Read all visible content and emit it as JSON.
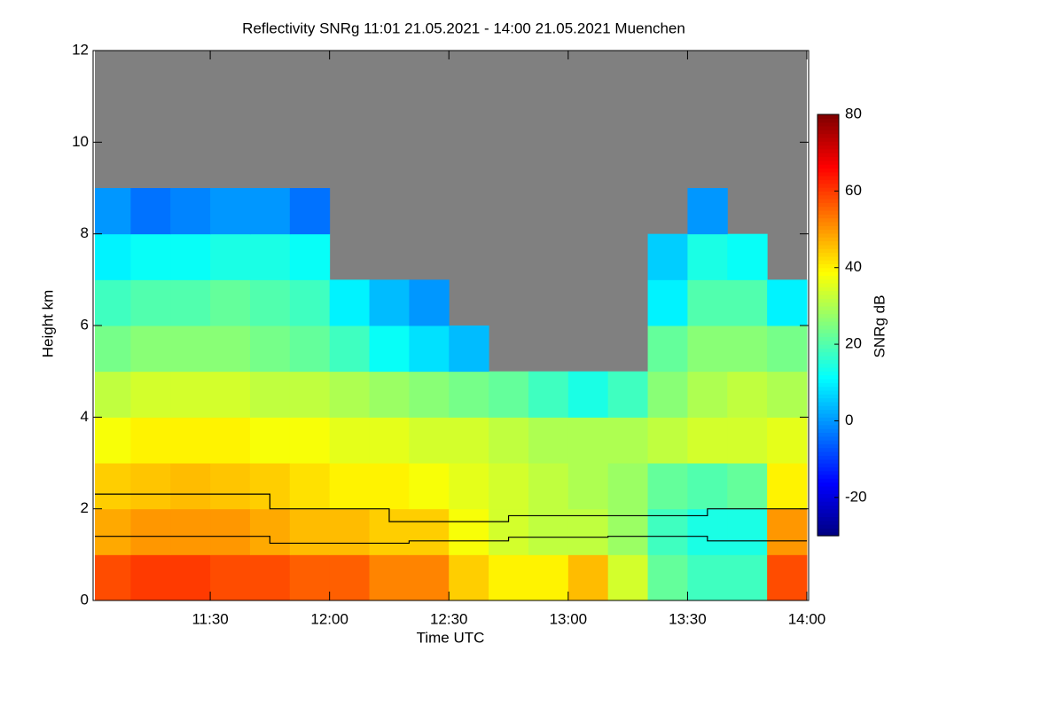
{
  "chart_data": {
    "type": "heatmap",
    "title": "Reflectivity SNRg   11:01 21.05.2021 - 14:00 21.05.2021 Muenchen",
    "x_label": "Time UTC",
    "y_label": "Height km",
    "colorbar_label": "SNRg dB",
    "colormap": "jet",
    "background_color": "#808080",
    "x_bins": [
      661,
      670,
      680,
      690,
      700,
      710,
      720,
      730,
      740,
      750,
      760,
      770,
      780,
      790,
      800,
      810,
      820,
      830,
      840
    ],
    "y_bins": [
      0,
      1,
      2,
      3,
      4,
      5,
      6,
      7,
      8,
      9,
      10,
      11,
      12
    ],
    "values": [
      [
        58,
        60,
        60,
        58,
        58,
        56,
        56,
        52,
        52,
        44,
        40,
        40,
        46,
        34,
        22,
        18,
        18,
        58
      ],
      [
        48,
        50,
        50,
        50,
        48,
        46,
        46,
        44,
        44,
        38,
        34,
        32,
        32,
        28,
        18,
        14,
        14,
        50
      ],
      [
        44,
        45,
        46,
        45,
        44,
        42,
        40,
        40,
        38,
        36,
        34,
        32,
        30,
        28,
        22,
        20,
        22,
        40
      ],
      [
        38,
        40,
        40,
        40,
        38,
        38,
        36,
        36,
        34,
        34,
        32,
        30,
        30,
        30,
        32,
        34,
        34,
        36
      ],
      [
        32,
        34,
        34,
        34,
        32,
        32,
        30,
        28,
        26,
        24,
        22,
        18,
        14,
        18,
        26,
        30,
        32,
        30
      ],
      [
        24,
        26,
        26,
        26,
        24,
        22,
        18,
        12,
        8,
        4,
        null,
        null,
        null,
        null,
        22,
        26,
        26,
        24
      ],
      [
        18,
        20,
        20,
        22,
        20,
        18,
        10,
        4,
        0,
        null,
        null,
        null,
        null,
        null,
        10,
        20,
        20,
        10
      ],
      [
        10,
        12,
        12,
        14,
        14,
        12,
        null,
        null,
        null,
        null,
        null,
        null,
        null,
        null,
        6,
        14,
        12,
        null
      ],
      [
        0,
        -4,
        -2,
        0,
        0,
        -4,
        null,
        null,
        null,
        null,
        null,
        null,
        null,
        null,
        null,
        0,
        null,
        null
      ],
      [
        null,
        null,
        null,
        null,
        null,
        null,
        null,
        null,
        null,
        null,
        null,
        null,
        null,
        null,
        null,
        null,
        null,
        null
      ],
      [
        null,
        null,
        null,
        null,
        null,
        null,
        null,
        null,
        null,
        null,
        null,
        null,
        null,
        null,
        null,
        null,
        null,
        null
      ],
      [
        null,
        null,
        null,
        null,
        null,
        null,
        null,
        null,
        null,
        null,
        null,
        null,
        null,
        null,
        null,
        null,
        null,
        null
      ]
    ],
    "lines": [
      {
        "color": "#000000",
        "x": [
          661,
          705,
          705,
          735,
          735,
          765,
          765,
          815,
          815,
          840
        ],
        "y": [
          2.32,
          2.32,
          2.0,
          2.0,
          1.72,
          1.72,
          1.85,
          1.85,
          2.0,
          2.0
        ]
      },
      {
        "color": "#000000",
        "x": [
          661,
          705,
          705,
          740,
          740,
          765,
          765,
          790,
          790,
          815,
          815,
          840
        ],
        "y": [
          1.4,
          1.4,
          1.25,
          1.25,
          1.3,
          1.3,
          1.38,
          1.38,
          1.4,
          1.4,
          1.3,
          1.3
        ]
      }
    ],
    "xlim": [
      661,
      840
    ],
    "ylim": [
      0,
      12
    ],
    "zlim": [
      -30,
      80
    ],
    "xticks": [
      {
        "value": 690,
        "label": "11:30"
      },
      {
        "value": 720,
        "label": "12:00"
      },
      {
        "value": 750,
        "label": "12:30"
      },
      {
        "value": 780,
        "label": "13:00"
      },
      {
        "value": 810,
        "label": "13:30"
      },
      {
        "value": 840,
        "label": "14:00"
      }
    ],
    "yticks": [
      0,
      2,
      4,
      6,
      8,
      10,
      12
    ],
    "zticks": [
      -20,
      0,
      20,
      40,
      60,
      80
    ]
  }
}
